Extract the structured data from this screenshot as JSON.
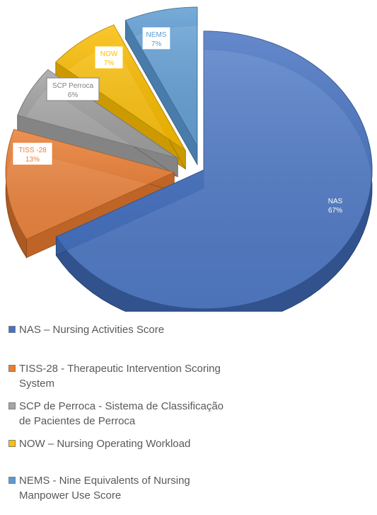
{
  "chart_data": {
    "type": "pie",
    "title": "",
    "slices": [
      {
        "label": "NAS",
        "value": 67,
        "value_label": "67%",
        "color": "#4472c4",
        "label_color": "#4472c4",
        "exploded": false
      },
      {
        "label": "TISS -28",
        "value": 13,
        "value_label": "13%",
        "color": "#ed7d31",
        "label_color": "#ed7d31",
        "exploded": true
      },
      {
        "label": "SCP Perroca",
        "value": 6,
        "value_label": "6%",
        "color": "#a5a5a5",
        "label_color": "#7f7f7f",
        "exploded": true
      },
      {
        "label": "NOW",
        "value": 7,
        "value_label": "7%",
        "color": "#ffc000",
        "label_color": "#ffc000",
        "exploded": true
      },
      {
        "label": "NEMS",
        "value": 7,
        "value_label": "7%",
        "color": "#5b9bd5",
        "label_color": "#5b9bd5",
        "exploded": true
      }
    ],
    "legend": {
      "placement": "bottom-left",
      "items": [
        {
          "text": "NAS – Nursing Activities Score",
          "color": "#4472c4"
        },
        {
          "text": "TISS-28 - Therapeutic Intervention Scoring\nSystem",
          "color": "#ed7d31"
        },
        {
          "text": "SCP de Perroca - Sistema de Classificação\nde Pacientes de Perroca",
          "color": "#a5a5a5"
        },
        {
          "text": "NOW – Nursing Operating Workload",
          "color": "#ffc000"
        },
        {
          "text": "NEMS - Nine Equivalents of Nursing\nManpower Use Score",
          "color": "#5b9bd5"
        }
      ]
    }
  }
}
